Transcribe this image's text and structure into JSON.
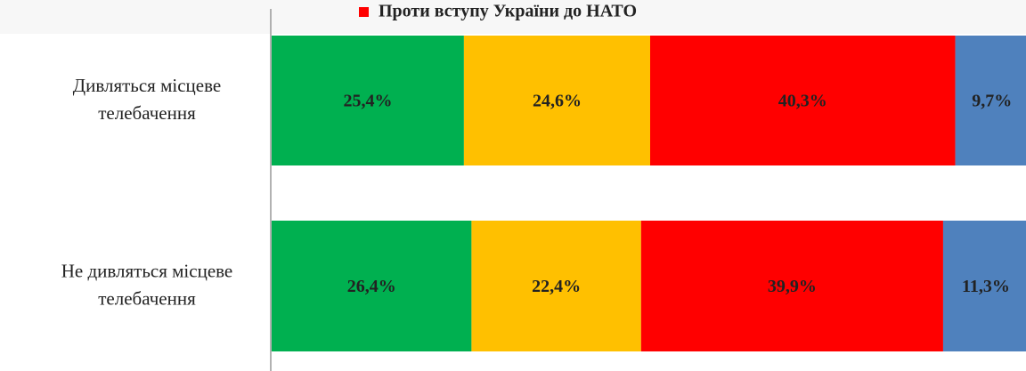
{
  "chart_data": {
    "type": "stacked-bar-horizontal",
    "categories": [
      "Дивляться місцеве телебачення",
      "Не дивляться місцеве телебачення"
    ],
    "series": [
      {
        "color": "#00b050",
        "values": [
          25.4,
          26.4
        ],
        "value_labels": [
          "25,4%",
          "26,4%"
        ]
      },
      {
        "color": "#ffc000",
        "values": [
          24.6,
          22.4
        ],
        "value_labels": [
          "24,6%",
          "22,4%"
        ]
      },
      {
        "name": "Проти вступу України до НАТО",
        "color": "#ff0000",
        "values": [
          40.3,
          39.9
        ],
        "value_labels": [
          "40,3%",
          "39,9%"
        ]
      },
      {
        "color": "#4f81bd",
        "values": [
          9.7,
          11.3
        ],
        "value_labels": [
          "9,7%",
          "11,3%"
        ]
      }
    ],
    "xlim": [
      0,
      100
    ]
  }
}
